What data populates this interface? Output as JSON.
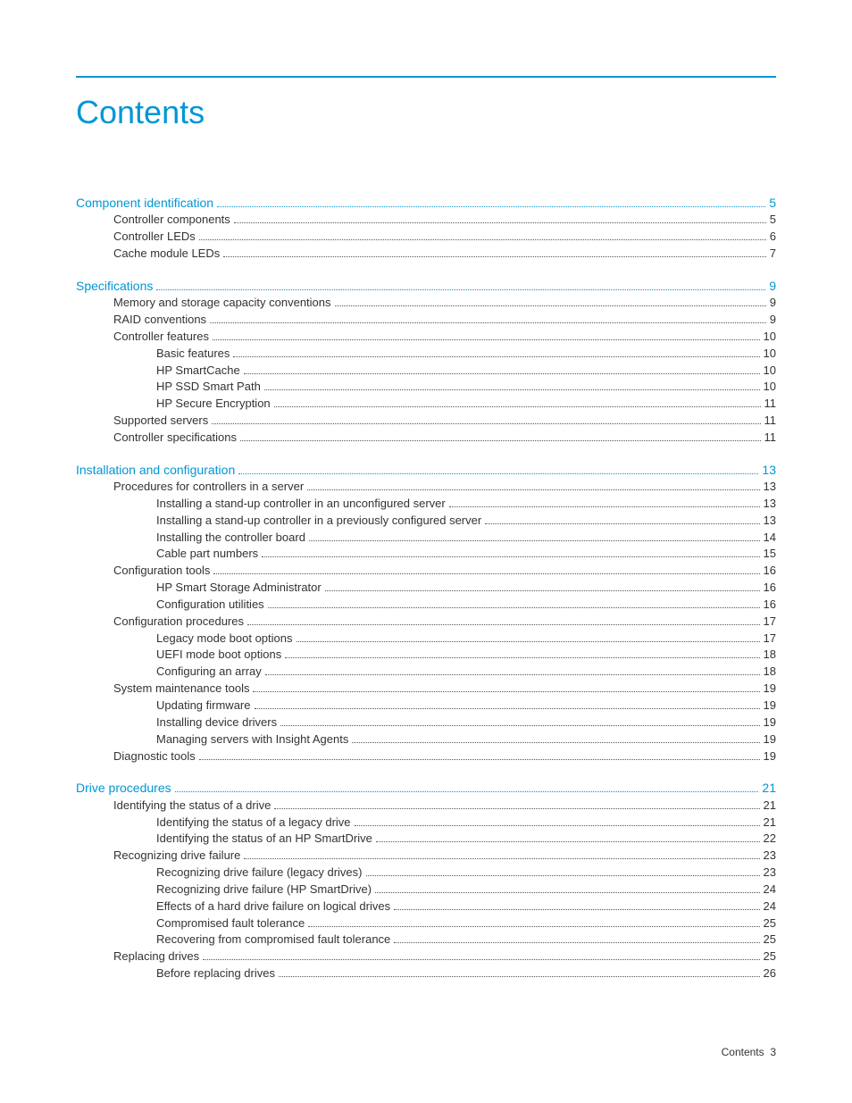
{
  "title": "Contents",
  "accent_color": "#0096d6",
  "text_color": "#333333",
  "section_fontsize": 14,
  "entry_fontsize": 13,
  "title_fontsize": 36,
  "footer_label": "Contents",
  "footer_page": "3",
  "sections": [
    {
      "heading": {
        "label": "Component identification",
        "page": "5"
      },
      "entries": [
        {
          "label": "Controller components",
          "page": "5",
          "indent": 1
        },
        {
          "label": "Controller LEDs",
          "page": "6",
          "indent": 1
        },
        {
          "label": "Cache module LEDs",
          "page": "7",
          "indent": 1
        }
      ]
    },
    {
      "heading": {
        "label": "Specifications",
        "page": "9"
      },
      "entries": [
        {
          "label": "Memory and storage capacity conventions",
          "page": "9",
          "indent": 1
        },
        {
          "label": "RAID conventions",
          "page": "9",
          "indent": 1
        },
        {
          "label": "Controller features",
          "page": "10",
          "indent": 1
        },
        {
          "label": "Basic features",
          "page": "10",
          "indent": 2
        },
        {
          "label": "HP SmartCache",
          "page": "10",
          "indent": 2
        },
        {
          "label": "HP SSD Smart Path",
          "page": "10",
          "indent": 2
        },
        {
          "label": "HP Secure Encryption",
          "page": "11",
          "indent": 2
        },
        {
          "label": "Supported servers",
          "page": "11",
          "indent": 1
        },
        {
          "label": "Controller specifications",
          "page": "11",
          "indent": 1
        }
      ]
    },
    {
      "heading": {
        "label": "Installation and configuration",
        "page": "13"
      },
      "entries": [
        {
          "label": "Procedures for controllers in a server",
          "page": "13",
          "indent": 1
        },
        {
          "label": "Installing a stand-up controller in an unconfigured server",
          "page": "13",
          "indent": 2
        },
        {
          "label": "Installing a stand-up controller in a previously configured server",
          "page": "13",
          "indent": 2
        },
        {
          "label": "Installing the controller board",
          "page": "14",
          "indent": 2
        },
        {
          "label": "Cable part numbers",
          "page": "15",
          "indent": 2
        },
        {
          "label": "Configuration tools",
          "page": "16",
          "indent": 1
        },
        {
          "label": "HP Smart Storage Administrator",
          "page": "16",
          "indent": 2
        },
        {
          "label": "Configuration utilities",
          "page": "16",
          "indent": 2
        },
        {
          "label": "Configuration procedures",
          "page": "17",
          "indent": 1
        },
        {
          "label": "Legacy mode boot options",
          "page": "17",
          "indent": 2
        },
        {
          "label": "UEFI mode boot options",
          "page": "18",
          "indent": 2
        },
        {
          "label": "Configuring an array",
          "page": "18",
          "indent": 2
        },
        {
          "label": "System maintenance tools",
          "page": "19",
          "indent": 1
        },
        {
          "label": "Updating firmware",
          "page": "19",
          "indent": 2
        },
        {
          "label": "Installing device drivers",
          "page": "19",
          "indent": 2
        },
        {
          "label": "Managing servers with Insight Agents",
          "page": "19",
          "indent": 2
        },
        {
          "label": "Diagnostic tools",
          "page": "19",
          "indent": 1
        }
      ]
    },
    {
      "heading": {
        "label": "Drive procedures",
        "page": "21"
      },
      "entries": [
        {
          "label": "Identifying the status of a drive",
          "page": "21",
          "indent": 1
        },
        {
          "label": "Identifying the status of a legacy drive",
          "page": "21",
          "indent": 2
        },
        {
          "label": "Identifying the status of an HP SmartDrive",
          "page": "22",
          "indent": 2
        },
        {
          "label": "Recognizing drive failure",
          "page": "23",
          "indent": 1
        },
        {
          "label": "Recognizing drive failure (legacy drives)",
          "page": "23",
          "indent": 2
        },
        {
          "label": "Recognizing drive failure (HP SmartDrive)",
          "page": "24",
          "indent": 2
        },
        {
          "label": "Effects of a hard drive failure on logical drives",
          "page": "24",
          "indent": 2
        },
        {
          "label": "Compromised fault tolerance",
          "page": "25",
          "indent": 2
        },
        {
          "label": "Recovering from compromised fault tolerance",
          "page": "25",
          "indent": 2
        },
        {
          "label": "Replacing drives",
          "page": "25",
          "indent": 1
        },
        {
          "label": "Before replacing drives",
          "page": "26",
          "indent": 2
        }
      ]
    }
  ]
}
